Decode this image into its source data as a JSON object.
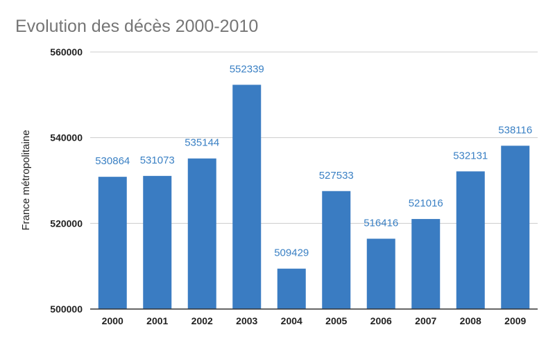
{
  "chart_data": {
    "type": "bar",
    "title": "Evolution des décès 2000-2010",
    "xlabel": "",
    "ylabel": "France métropolitaine",
    "categories": [
      "2000",
      "2001",
      "2002",
      "2003",
      "2004",
      "2005",
      "2006",
      "2007",
      "2008",
      "2009"
    ],
    "values": [
      530864,
      531073,
      535144,
      552339,
      509429,
      527533,
      516416,
      521016,
      532131,
      538116
    ],
    "data_labels": [
      "530864",
      "531073",
      "535144",
      "552339",
      "509429",
      "527533",
      "516416",
      "521016",
      "532131",
      "538116"
    ],
    "ylim": [
      500000,
      560000
    ],
    "yticks": [
      "500000",
      "520000",
      "540000",
      "560000"
    ],
    "ytick_values": [
      500000,
      520000,
      540000,
      560000
    ],
    "grid": true,
    "legend": "none",
    "colors": {
      "bar": "#3a7cc2",
      "label": "#3a80c4",
      "title": "#757575",
      "grid": "#cccccc"
    }
  }
}
